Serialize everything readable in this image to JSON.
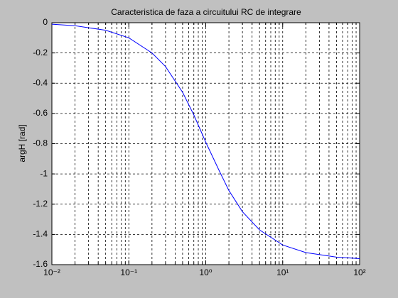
{
  "chart_data": {
    "type": "line",
    "title": "Caracteristica de faza a circuitului RC de integrare",
    "y_label": "argH [rad]",
    "x": [
      0.01,
      0.02,
      0.05,
      0.1,
      0.2,
      0.3,
      0.5,
      0.7,
      1,
      1.5,
      2,
      3,
      5,
      10,
      20,
      50,
      100
    ],
    "series": [
      {
        "color": "#0000ff",
        "values": [
          -0.01,
          -0.02,
          -0.05,
          -0.1,
          -0.2,
          -0.29,
          -0.46,
          -0.61,
          -0.79,
          -0.98,
          -1.11,
          -1.25,
          -1.37,
          -1.47,
          -1.52,
          -1.55,
          -1.56
        ]
      }
    ],
    "xlim": [
      0.01,
      100
    ],
    "x_scale": "log",
    "xticks": [
      {
        "value": 0.01,
        "label": "10⁻²"
      },
      {
        "value": 0.1,
        "label": "10⁻¹"
      },
      {
        "value": 1,
        "label": "10⁰"
      },
      {
        "value": 10,
        "label": "10¹"
      },
      {
        "value": 100,
        "label": "10²"
      }
    ],
    "ylim": [
      -1.6,
      0
    ],
    "yticks": [
      0,
      -0.2,
      -0.4,
      -0.6,
      -0.8,
      -1,
      -1.2,
      -1.4,
      -1.6
    ],
    "grid": true,
    "minor_grid": true
  }
}
